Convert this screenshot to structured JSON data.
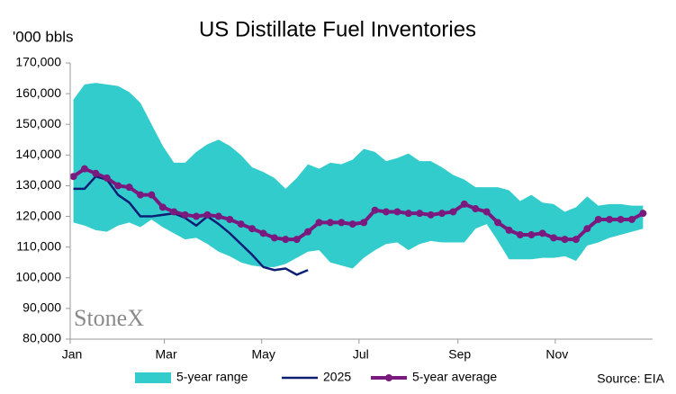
{
  "chart_data": {
    "type": "line",
    "title": "US Distillate Fuel Inventories",
    "y_label": "'000 bbls",
    "source": "Source: EIA",
    "watermark": "StoneX",
    "x": [
      2,
      9,
      16,
      23,
      30,
      37,
      44,
      51,
      58,
      65,
      72,
      79,
      86,
      93,
      100,
      107,
      114,
      121,
      128,
      135,
      142,
      149,
      156,
      163,
      170,
      177,
      184,
      191,
      198,
      205,
      212,
      219,
      226,
      233,
      240,
      247,
      254,
      261,
      268,
      275,
      282,
      289,
      296,
      303,
      310,
      317,
      324,
      331,
      338,
      345,
      352,
      359
    ],
    "xlim": [
      0,
      365
    ],
    "xticks": [
      {
        "value": 0,
        "label": "Jan"
      },
      {
        "value": 59,
        "label": "Mar"
      },
      {
        "value": 120,
        "label": "May"
      },
      {
        "value": 181,
        "label": "Jul"
      },
      {
        "value": 243,
        "label": "Sep"
      },
      {
        "value": 304,
        "label": "Nov"
      }
    ],
    "ylim": [
      80000,
      170000
    ],
    "yticks": [
      {
        "value": 80000,
        "label": "80,000"
      },
      {
        "value": 90000,
        "label": "90,000"
      },
      {
        "value": 100000,
        "label": "100,000"
      },
      {
        "value": 110000,
        "label": "110,000"
      },
      {
        "value": 120000,
        "label": "120,000"
      },
      {
        "value": 130000,
        "label": "130,000"
      },
      {
        "value": 140000,
        "label": "140,000"
      },
      {
        "value": 150000,
        "label": "150,000"
      },
      {
        "value": 160000,
        "label": "160,000"
      },
      {
        "value": 170000,
        "label": "170,000"
      }
    ],
    "legend": "bottom",
    "series": [
      {
        "name": "5-year range",
        "color": "#33cccc",
        "style": "band",
        "upper": [
          158000,
          163000,
          163500,
          163000,
          162500,
          160500,
          157000,
          150000,
          143000,
          137500,
          137500,
          141000,
          143500,
          145000,
          143000,
          140000,
          136000,
          134500,
          132500,
          129000,
          132500,
          137000,
          135500,
          137500,
          137000,
          138500,
          142000,
          141000,
          138000,
          139000,
          140500,
          138000,
          138000,
          136000,
          133500,
          132000,
          129500,
          129500,
          129500,
          128500,
          125000,
          127000,
          124500,
          124000,
          121500,
          123000,
          126500,
          123500,
          124000,
          124000,
          123500,
          123500
        ],
        "lower": [
          118000,
          117000,
          115500,
          115000,
          117000,
          118000,
          116500,
          119000,
          116500,
          114500,
          112500,
          113000,
          111000,
          108500,
          107000,
          105000,
          104000,
          103500,
          103500,
          104500,
          106500,
          108500,
          109000,
          105000,
          104000,
          103000,
          106500,
          109000,
          111000,
          111500,
          109000,
          111000,
          112000,
          111500,
          111500,
          111500,
          116000,
          117500,
          112000,
          106000,
          106000,
          106000,
          106500,
          106500,
          107000,
          105500,
          110500,
          111500,
          113000,
          114000,
          115000,
          116000
        ]
      },
      {
        "name": "2025",
        "color": "#0b1f74",
        "style": "line",
        "values": [
          129000,
          129000,
          133000,
          132000,
          127000,
          124500,
          120000,
          120000,
          120500,
          121000,
          119500,
          117000,
          120000,
          117500,
          114500,
          111000,
          107500,
          103500,
          102500,
          103000,
          101000,
          102500,
          null,
          null,
          null,
          null,
          null,
          null,
          null,
          null,
          null,
          null,
          null,
          null,
          null,
          null,
          null,
          null,
          null,
          null,
          null,
          null,
          null,
          null,
          null,
          null,
          null,
          null,
          null,
          null,
          null,
          null
        ]
      },
      {
        "name": "5-year average",
        "color": "#7b1a7e",
        "style": "line-markers",
        "values": [
          133000,
          135500,
          134000,
          132500,
          130000,
          129500,
          127000,
          127000,
          123000,
          121500,
          120500,
          120000,
          120500,
          120000,
          119000,
          117500,
          116000,
          114500,
          113000,
          112500,
          112500,
          115000,
          118000,
          118000,
          118000,
          117500,
          118000,
          122000,
          121500,
          121500,
          121000,
          121000,
          120500,
          121000,
          121500,
          124000,
          122500,
          121500,
          118000,
          115500,
          114000,
          114000,
          114500,
          113000,
          112500,
          112500,
          116000,
          119000,
          119000,
          119000,
          119000,
          121000
        ]
      }
    ]
  }
}
